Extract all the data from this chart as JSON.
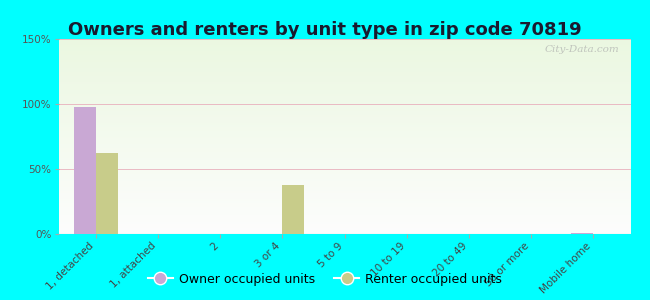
{
  "title": "Owners and renters by unit type in zip code 70819",
  "categories": [
    "1, detached",
    "1, attached",
    "2",
    "3 or 4",
    "5 to 9",
    "10 to 19",
    "20 to 49",
    "50 or more",
    "Mobile home"
  ],
  "owner_values": [
    98,
    0,
    0,
    0,
    0,
    0,
    0,
    0,
    1
  ],
  "renter_values": [
    62,
    0,
    0,
    38,
    0,
    0,
    0,
    0,
    0
  ],
  "owner_color": "#c9a8d4",
  "renter_color": "#c8cc8a",
  "ylim": [
    0,
    150
  ],
  "yticks": [
    0,
    50,
    100,
    150
  ],
  "ytick_labels": [
    "0%",
    "50%",
    "100%",
    "150%"
  ],
  "background_color": "#00ffff",
  "watermark": "City-Data.com",
  "legend_owner": "Owner occupied units",
  "legend_renter": "Renter occupied units",
  "bar_width": 0.35,
  "title_fontsize": 13,
  "tick_fontsize": 7.5,
  "legend_fontsize": 9
}
